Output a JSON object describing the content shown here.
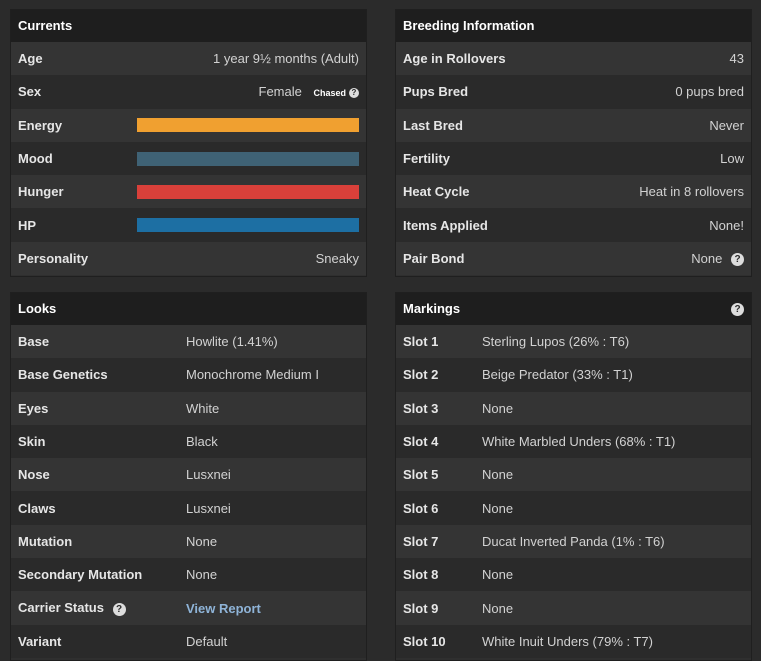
{
  "currents": {
    "title": "Currents",
    "age_label": "Age",
    "age_value": "1 year 9½ months (Adult)",
    "sex_label": "Sex",
    "sex_value": "Female",
    "chased_label": "Chased",
    "energy_label": "Energy",
    "energy_level": 1.0,
    "mood_label": "Mood",
    "mood_level": 1.0,
    "hunger_label": "Hunger",
    "hunger_level": 1.0,
    "hp_label": "HP",
    "hp_level": 1.0,
    "personality_label": "Personality",
    "personality_value": "Sneaky",
    "colors": {
      "energy": "#f0a030",
      "mood": "#3f6275",
      "hunger": "#d9403a",
      "hp": "#1d6fa3"
    }
  },
  "breeding": {
    "title": "Breeding Information",
    "rows": [
      {
        "label": "Age in Rollovers",
        "value": "43"
      },
      {
        "label": "Pups Bred",
        "value": "0 pups bred"
      },
      {
        "label": "Last Bred",
        "value": "Never"
      },
      {
        "label": "Fertility",
        "value": "Low"
      },
      {
        "label": "Heat Cycle",
        "value": "Heat in 8 rollovers"
      },
      {
        "label": "Items Applied",
        "value": "None!"
      },
      {
        "label": "Pair Bond",
        "value": "None"
      }
    ]
  },
  "looks": {
    "title": "Looks",
    "rows": [
      {
        "label": "Base",
        "value": "Howlite (1.41%)"
      },
      {
        "label": "Base Genetics",
        "value": "Monochrome Medium I"
      },
      {
        "label": "Eyes",
        "value": "White"
      },
      {
        "label": "Skin",
        "value": "Black"
      },
      {
        "label": "Nose",
        "value": "Lusxnei"
      },
      {
        "label": "Claws",
        "value": "Lusxnei"
      },
      {
        "label": "Mutation",
        "value": "None"
      },
      {
        "label": "Secondary Mutation",
        "value": "None"
      },
      {
        "label": "Carrier Status",
        "value": "View Report"
      },
      {
        "label": "Variant",
        "value": "Default"
      }
    ]
  },
  "markings": {
    "title": "Markings",
    "rows": [
      {
        "label": "Slot 1",
        "value": "Sterling Lupos (26% : T6)"
      },
      {
        "label": "Slot 2",
        "value": "Beige Predator (33% : T1)"
      },
      {
        "label": "Slot 3",
        "value": "None"
      },
      {
        "label": "Slot 4",
        "value": "White Marbled Unders (68% : T1)"
      },
      {
        "label": "Slot 5",
        "value": "None"
      },
      {
        "label": "Slot 6",
        "value": "None"
      },
      {
        "label": "Slot 7",
        "value": "Ducat Inverted Panda (1% : T6)"
      },
      {
        "label": "Slot 8",
        "value": "None"
      },
      {
        "label": "Slot 9",
        "value": "None"
      },
      {
        "label": "Slot 10",
        "value": "White Inuit Unders (79% : T7)"
      }
    ]
  }
}
